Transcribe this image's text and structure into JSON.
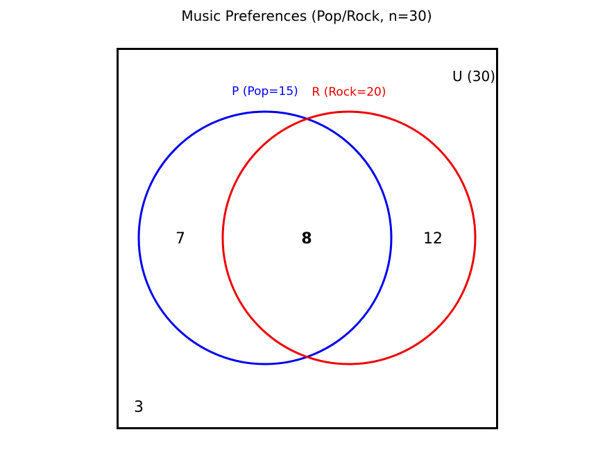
{
  "title": "Music Preferences (Pop/Rock, n=30)",
  "universe": {
    "label": "U (30)",
    "total": 30
  },
  "sets": [
    {
      "id": "P",
      "label": "P (Pop=15)",
      "color": "#0000ee",
      "size": 15
    },
    {
      "id": "R",
      "label": "R (Rock=20)",
      "color": "#ee0000",
      "size": 20
    }
  ],
  "regions": {
    "pop_only": "7",
    "both": "8",
    "rock_only": "12",
    "neither": "3"
  }
}
